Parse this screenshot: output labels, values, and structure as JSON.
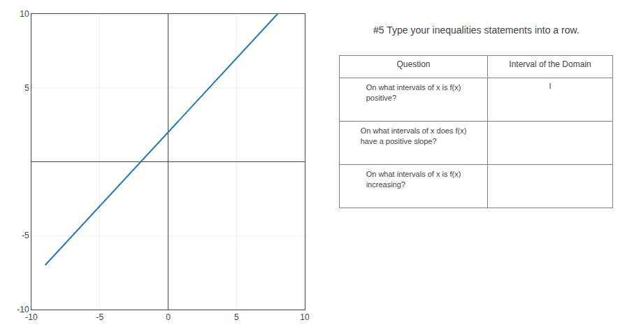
{
  "chart_data": [
    {
      "type": "line",
      "x": [
        -9,
        8
      ],
      "values": [
        -7,
        10
      ],
      "xlim": [
        -10,
        10
      ],
      "ylim": [
        -10,
        10
      ],
      "xticks": [
        -10,
        -5,
        0,
        5,
        10
      ],
      "yticks": [
        -10,
        -5,
        5,
        10
      ],
      "grid": true
    },
    {
      "type": "table",
      "title": "#5 Type your inequalities statements into a row.",
      "columns": [
        "Question",
        "Interval of the Domain"
      ],
      "rows": [
        [
          "On what intervals of x is f(x)\npositive?",
          "I"
        ],
        [
          "On what intervals of x does f(x)\nhave a positive slope?",
          null
        ],
        [
          "On what intervals of x is f(x)\nincreasing?",
          null
        ]
      ]
    }
  ]
}
